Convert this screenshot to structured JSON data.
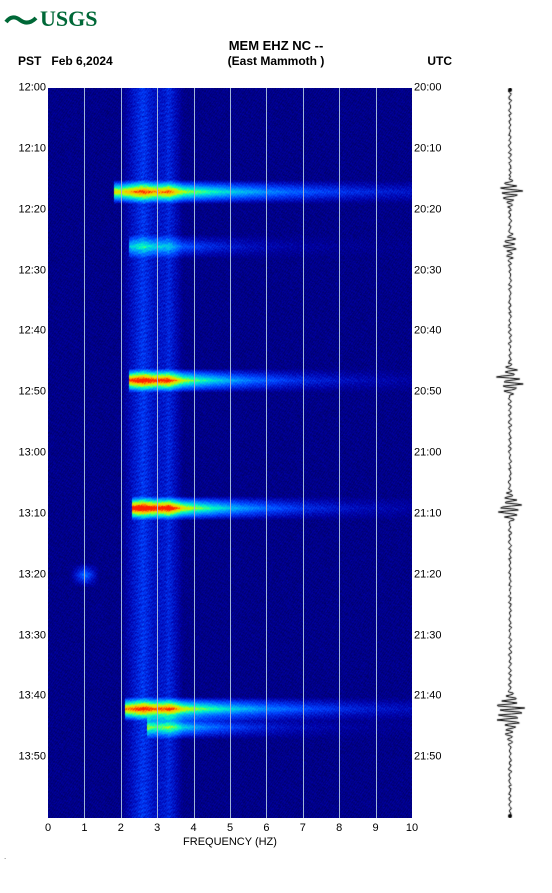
{
  "logo_text": "USGS",
  "logo_color": "#006837",
  "title": "MEM EHZ NC --",
  "subtitle": "(East Mammoth )",
  "tz_left": "PST",
  "date_left": "Feb 6,2024",
  "tz_right": "UTC",
  "spectrogram": {
    "type": "spectrogram",
    "freq_min": 0,
    "freq_max": 10,
    "time_start_min": 0,
    "time_end_min": 120,
    "background_color": "#000088",
    "noise_color_low": "#000060",
    "noise_color_high": "#1030c0",
    "grid_color": "#9fb4d8",
    "xlabel": "FREQUENCY (HZ)",
    "xtick_step": 1,
    "left_ticks": [
      "12:00",
      "12:10",
      "12:20",
      "12:30",
      "12:40",
      "12:50",
      "13:00",
      "13:10",
      "13:20",
      "13:30",
      "13:40",
      "13:50"
    ],
    "right_ticks": [
      "20:00",
      "20:10",
      "20:20",
      "20:30",
      "20:40",
      "20:50",
      "21:00",
      "21:10",
      "21:20",
      "21:30",
      "21:40",
      "21:50"
    ],
    "left_tick_minutes": [
      0,
      10,
      20,
      30,
      40,
      50,
      60,
      70,
      80,
      90,
      100,
      110
    ],
    "events": [
      {
        "time_min": 17,
        "freq_center": 3.3,
        "freq_spread": 1.5,
        "intensity": 0.75,
        "broadband": true
      },
      {
        "time_min": 26,
        "freq_center": 3.0,
        "freq_spread": 0.8,
        "intensity": 0.35,
        "broadband": true
      },
      {
        "time_min": 48,
        "freq_center": 3.2,
        "freq_spread": 1.0,
        "intensity": 0.85,
        "broadband": true
      },
      {
        "time_min": 69,
        "freq_center": 3.3,
        "freq_spread": 1.0,
        "intensity": 0.9,
        "broadband": true
      },
      {
        "time_min": 80,
        "freq_center": 1.0,
        "freq_spread": 0.4,
        "intensity": 0.3,
        "broadband": false
      },
      {
        "time_min": 102,
        "freq_center": 3.4,
        "freq_spread": 1.3,
        "intensity": 0.8,
        "broadband": true
      },
      {
        "time_min": 105,
        "freq_center": 3.5,
        "freq_spread": 0.8,
        "intensity": 0.5,
        "broadband": true
      }
    ],
    "ambient_bands": [
      {
        "freq": 2.6,
        "width": 0.6,
        "level": 0.22
      },
      {
        "freq": 3.3,
        "width": 0.4,
        "level": 0.18
      }
    ],
    "colormap": [
      {
        "v": 0.0,
        "c": "#000044"
      },
      {
        "v": 0.15,
        "c": "#0000aa"
      },
      {
        "v": 0.3,
        "c": "#0040ff"
      },
      {
        "v": 0.45,
        "c": "#00a0ff"
      },
      {
        "v": 0.6,
        "c": "#00ffc0"
      },
      {
        "v": 0.75,
        "c": "#c0ff00"
      },
      {
        "v": 0.88,
        "c": "#ffc000"
      },
      {
        "v": 1.0,
        "c": "#ff2000"
      }
    ]
  },
  "seismogram": {
    "background": "#ffffff",
    "trace_color": "#000000",
    "baseline_width": 2,
    "events_amplitude": [
      {
        "time_min": 17,
        "amp": 0.55
      },
      {
        "time_min": 26,
        "amp": 0.35
      },
      {
        "time_min": 48,
        "amp": 0.7
      },
      {
        "time_min": 69,
        "amp": 0.6
      },
      {
        "time_min": 102,
        "amp": 0.8
      },
      {
        "time_min": 105,
        "amp": 0.35
      }
    ]
  },
  "footer_mark": "."
}
